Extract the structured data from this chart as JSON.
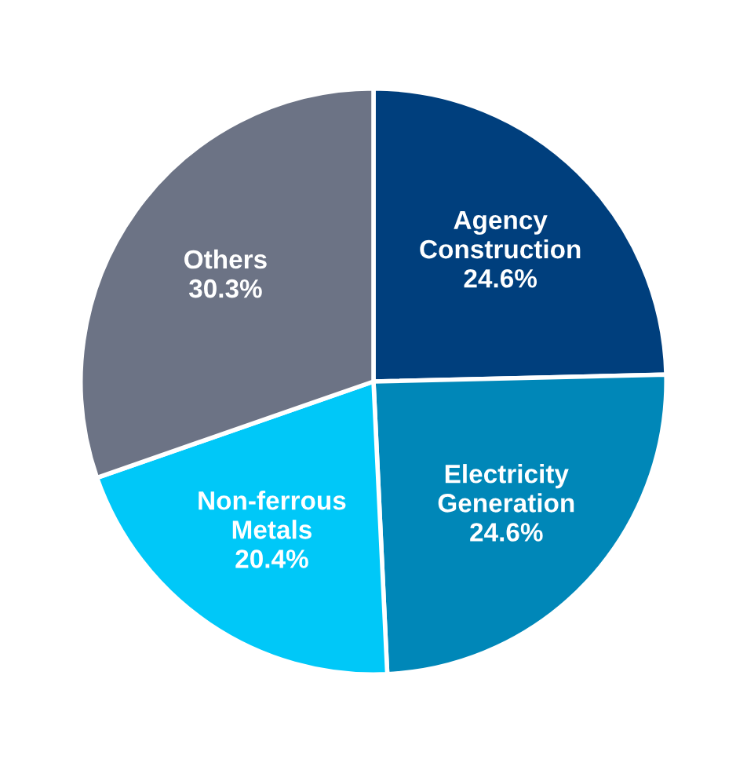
{
  "chart_data": {
    "type": "pie",
    "categories": [
      "Agency\nConstruction",
      "Electricity\nGeneration",
      "Non-ferrous\nMetals",
      "Others"
    ],
    "values": [
      24.6,
      24.6,
      20.4,
      30.3
    ],
    "value_labels": [
      "24.6%",
      "24.6%",
      "20.4%",
      "30.3%"
    ],
    "colors": [
      "#003f7d",
      "#0087b8",
      "#00c8f8",
      "#6c7385"
    ],
    "legend": false
  }
}
